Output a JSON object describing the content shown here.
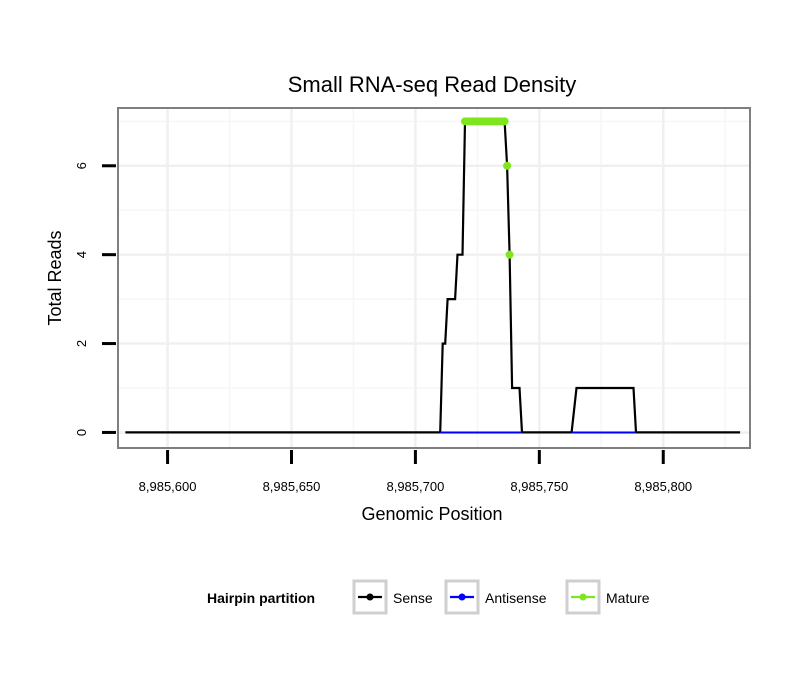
{
  "chart_data": {
    "type": "line",
    "title": "Small RNA-seq Read Density",
    "xlabel": "Genomic Position",
    "ylabel": "Total Reads",
    "xlim": [
      8985580,
      8985835
    ],
    "ylim": [
      -0.35,
      7.3
    ],
    "x_ticks": [
      8985600,
      8985650,
      8985700,
      8985750,
      8985800
    ],
    "x_tick_labels": [
      "8,985,600",
      "8,985,650",
      "8,985,700",
      "8,985,750",
      "8,985,800"
    ],
    "y_ticks": [
      0,
      2,
      4,
      6
    ],
    "y_tick_labels": [
      "0",
      "2",
      "4",
      "6"
    ],
    "grid": true,
    "legend": {
      "title": "Hairpin partition",
      "position": "bottom",
      "entries": [
        {
          "name": "Sense",
          "color": "#000000"
        },
        {
          "name": "Antisense",
          "color": "#0000ff"
        },
        {
          "name": "Mature",
          "color": "#7fe61e"
        }
      ]
    },
    "series": [
      {
        "name": "Sense",
        "color": "#000000",
        "points": [
          [
            8985583,
            0
          ],
          [
            8985710,
            0
          ],
          [
            8985711,
            2
          ],
          [
            8985712,
            2
          ],
          [
            8985713,
            3
          ],
          [
            8985716,
            3
          ],
          [
            8985717,
            4
          ],
          [
            8985719,
            4
          ],
          [
            8985720,
            7
          ],
          [
            8985736,
            7
          ],
          [
            8985737,
            6
          ],
          [
            8985738,
            4
          ],
          [
            8985739,
            1
          ],
          [
            8985742,
            1
          ],
          [
            8985743,
            0
          ],
          [
            8985763,
            0
          ],
          [
            8985765,
            1
          ],
          [
            8985788,
            1
          ],
          [
            8985789,
            0
          ],
          [
            8985831,
            0
          ]
        ]
      },
      {
        "name": "Antisense",
        "color": "#0000ff",
        "points": [
          [
            8985710,
            0
          ],
          [
            8985743,
            0
          ],
          [
            8985763,
            0
          ],
          [
            8985789,
            0
          ]
        ]
      },
      {
        "name": "Mature",
        "color": "#7fe61e",
        "points": [
          [
            8985720,
            7
          ],
          [
            8985721,
            7
          ],
          [
            8985722,
            7
          ],
          [
            8985723,
            7
          ],
          [
            8985724,
            7
          ],
          [
            8985725,
            7
          ],
          [
            8985726,
            7
          ],
          [
            8985727,
            7
          ],
          [
            8985728,
            7
          ],
          [
            8985729,
            7
          ],
          [
            8985730,
            7
          ],
          [
            8985731,
            7
          ],
          [
            8985732,
            7
          ],
          [
            8985733,
            7
          ],
          [
            8985734,
            7
          ],
          [
            8985735,
            7
          ],
          [
            8985736,
            7
          ],
          [
            8985737,
            6
          ],
          [
            8985738,
            4
          ]
        ]
      }
    ]
  }
}
